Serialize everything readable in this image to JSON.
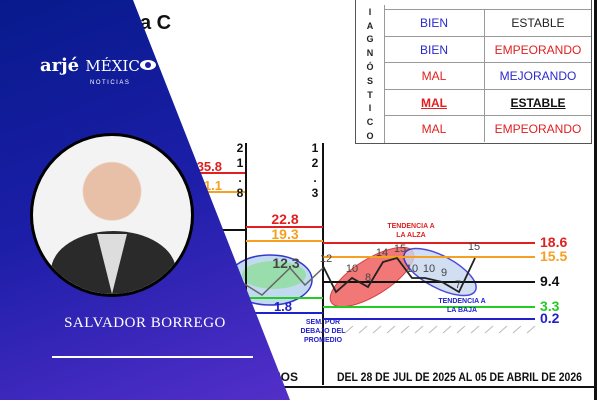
{
  "header_fragment": "a C",
  "table": {
    "side_label": [
      "I",
      "A",
      "G",
      "N",
      "Ó",
      "S",
      "T",
      "I",
      "C",
      "O"
    ],
    "rows": [
      {
        "status": "BIEN",
        "status_color": "#2a2acc",
        "trend": "ESTABLE",
        "trend_color": "#222222"
      },
      {
        "status": "BIEN",
        "status_color": "#2a2acc",
        "trend": "EMPEORANDO",
        "trend_color": "#e02020"
      },
      {
        "status": "MAL",
        "status_color": "#e02020",
        "trend": "MEJORANDO",
        "trend_color": "#2a2acc"
      },
      {
        "status": "MAL",
        "status_color": "#e02020",
        "trend": "ESTABLE",
        "trend_color": "#111111",
        "highlighted": true
      },
      {
        "status": "MAL",
        "status_color": "#e02020",
        "trend": "EMPEORANDO",
        "trend_color": "#e02020"
      }
    ]
  },
  "chart": {
    "left_values": {
      "red": "35.8",
      "orange": "1.1",
      "vertical_label": [
        "2",
        "1",
        ".",
        "8"
      ]
    },
    "mid_values": {
      "red": "22.8",
      "orange": "19.3",
      "mean": "12.3",
      "low": "1.8",
      "vertical_label": [
        "1",
        "2",
        ".",
        "3"
      ]
    },
    "right_values": {
      "red": "18.6",
      "orange": "15.5",
      "mean": "9.4",
      "green": "3.3",
      "blue": "0.2"
    },
    "series_labels": [
      "12",
      "10",
      "8",
      "14",
      "15",
      "10",
      "10",
      "9",
      "7",
      "15"
    ],
    "annotations": {
      "up": [
        "TENDENCIA A",
        "LA ALZA"
      ],
      "down": [
        "TENDENCIA A",
        "LA BAJA"
      ],
      "below": [
        "SEM. POR",
        "DEBAJO DEL",
        "PROMEDIO"
      ]
    },
    "footer_left": "NOS",
    "footer": "DEL 28 DE JUL DE 2025 AL 05 DE ABRIL DE 2026",
    "colors": {
      "red": "#e02020",
      "orange": "#f5a020",
      "black": "#111111",
      "green": "#22cc22",
      "blue": "#2020cc"
    }
  },
  "brand": {
    "logo_main": "arjé",
    "logo_mexico": "MÉXIC",
    "logo_sub": "NOTICIAS"
  },
  "person": {
    "name": "SALVADOR BORREGO"
  }
}
